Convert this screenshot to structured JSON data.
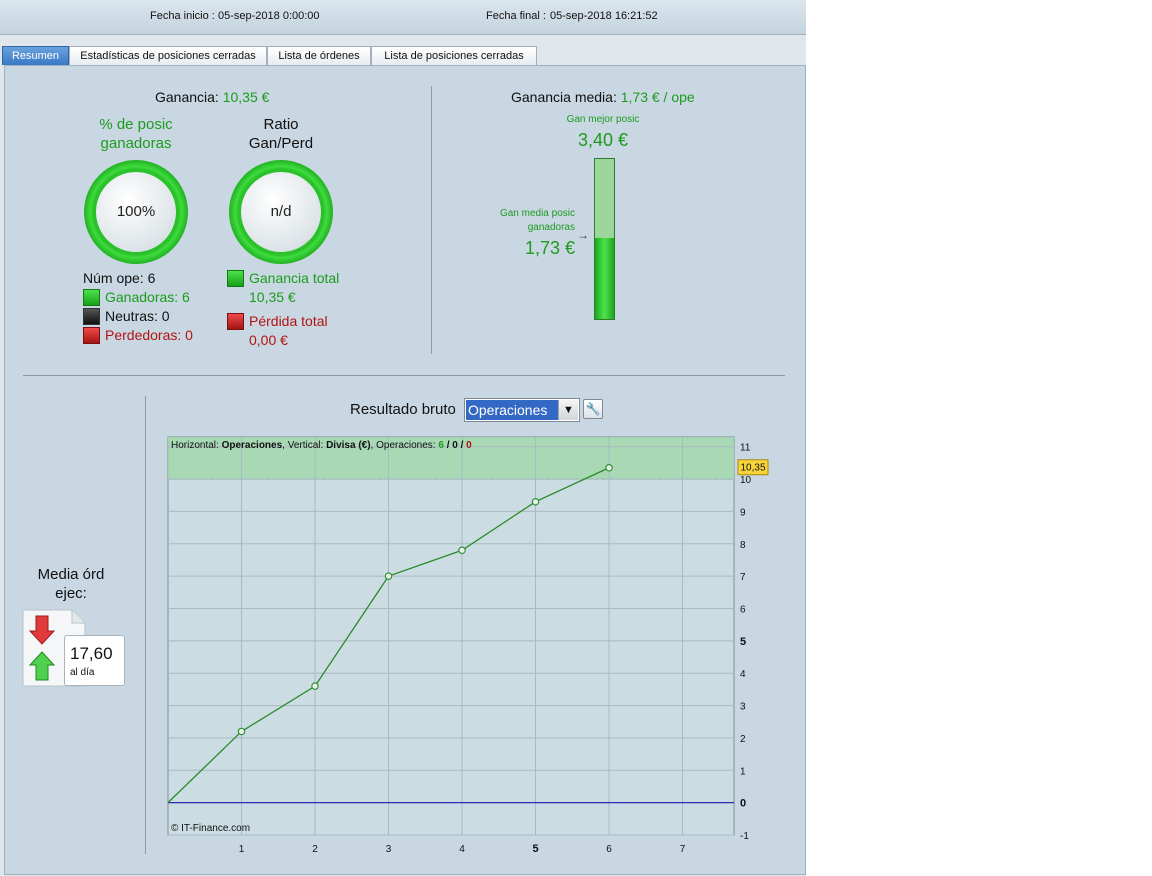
{
  "header": {
    "start_label": "Fecha inicio :",
    "start_value": "05-sep-2018 0:00:00",
    "end_label": "Fecha final :",
    "end_value": "05-sep-2018 16:21:52"
  },
  "tabs": [
    {
      "label": "Resumen",
      "active": true
    },
    {
      "label": "Estadísticas de posiciones cerradas",
      "active": false
    },
    {
      "label": "Lista de órdenes",
      "active": false
    },
    {
      "label": "Lista de posiciones cerradas",
      "active": false
    }
  ],
  "summary": {
    "ganancia_label": "Ganancia:",
    "ganancia_value": "10,35 €",
    "pct_title_line1": "% de posic",
    "pct_title_line2": "ganadoras",
    "pct_value": "100%",
    "ratio_title_line1": "Ratio",
    "ratio_title_line2": "Gan/Perd",
    "ratio_value": "n/d",
    "num_ope": "Núm ope: 6",
    "ganadoras": "Ganadoras: 6",
    "neutras": "Neutras: 0",
    "perdedoras": "Perdedoras: 0",
    "ganancia_total_label": "Ganancia total",
    "ganancia_total_value": "10,35 €",
    "perdida_total_label": "Pérdida total",
    "perdida_total_value": "0,00 €"
  },
  "media": {
    "label": "Ganancia media:",
    "value": "1,73 € / ope",
    "best_label": "Gan mejor posic",
    "best_value": "3,40 €",
    "avg_label_line1": "Gan media posic",
    "avg_label_line2": "ganadoras",
    "avg_value": "1,73 €",
    "best_amount": 3.4,
    "avg_amount": 1.73
  },
  "orders": {
    "title_line1": "Media órd",
    "title_line2": "ejec:",
    "value": "17,60",
    "unit": "al día"
  },
  "result": {
    "title": "Resultado bruto",
    "select_value": "Operaciones"
  },
  "chart_info": {
    "prefix": "Horizontal: ",
    "h_value": "Operaciones",
    "mid": ", Vertical: ",
    "v_value": "Divisa (€)",
    "ops_prefix": ", Operaciones: ",
    "ops_win": "6",
    "ops_sep1": " / ",
    "ops_neutral": "0",
    "ops_sep2": " / ",
    "ops_loss": "0",
    "copyright": "© IT-Finance.com",
    "last_value_label": "10,35"
  },
  "chart_data": {
    "type": "line",
    "x": [
      0,
      1,
      2,
      3,
      4,
      5,
      6
    ],
    "y": [
      0,
      2.2,
      3.6,
      7.0,
      7.8,
      9.3,
      10.35
    ],
    "xlim": [
      0,
      7.7
    ],
    "ylim": [
      -1,
      11.3
    ],
    "x_ticks": [
      1,
      2,
      3,
      4,
      5,
      6,
      7
    ],
    "y_ticks": [
      -1,
      0,
      1,
      2,
      3,
      4,
      5,
      6,
      7,
      8,
      9,
      10,
      11
    ],
    "highlight_from": 10,
    "grid": true,
    "colors": {
      "line": "#2a8a2a",
      "zero": "#2b2bb5",
      "band": "#9fd7a8",
      "bg": "#cbdde3"
    }
  }
}
